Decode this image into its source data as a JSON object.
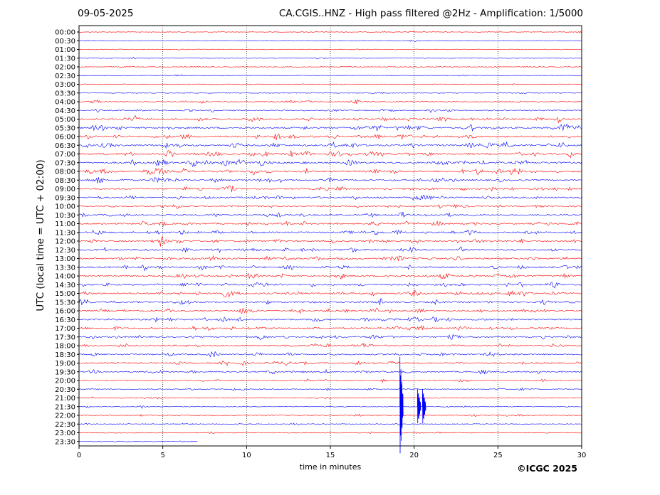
{
  "header": {
    "date": "09-05-2025",
    "title": "CA.CGIS..HNZ - High pass filtered @2Hz - Amplification: 1/5000"
  },
  "footer": {
    "copyright": "©ICGC 2025"
  },
  "chart_data": {
    "type": "line",
    "title": "CA.CGIS..HNZ - High pass filtered @2Hz - Amplification: 1/5000",
    "xlabel": "time in minutes",
    "ylabel": "UTC (local time = UTC + 02:00)",
    "xlim": [
      0,
      30
    ],
    "x_ticks": [
      "0",
      "5",
      "10",
      "15",
      "20",
      "25",
      "30"
    ],
    "row_labels": [
      "00:00",
      "00:30",
      "01:00",
      "01:30",
      "02:00",
      "02:30",
      "03:00",
      "03:30",
      "04:00",
      "04:30",
      "05:00",
      "05:30",
      "06:00",
      "06:30",
      "07:00",
      "07:30",
      "08:00",
      "08:30",
      "09:00",
      "09:30",
      "10:00",
      "10:30",
      "11:00",
      "11:30",
      "12:00",
      "12:30",
      "13:00",
      "13:30",
      "14:00",
      "14:30",
      "15:00",
      "15:30",
      "16:00",
      "16:30",
      "17:00",
      "17:30",
      "18:00",
      "18:30",
      "19:00",
      "19:30",
      "20:00",
      "20:30",
      "21:00",
      "21:30",
      "22:00",
      "22:30",
      "23:00",
      "23:30"
    ],
    "grid": "vertical dotted every 5 minutes",
    "trace_colors": [
      "#ff0000",
      "#0000ff"
    ],
    "activity_level": [
      0.05,
      0.05,
      0.05,
      0.05,
      0.05,
      0.05,
      0.05,
      0.08,
      0.25,
      0.25,
      0.5,
      0.6,
      0.6,
      0.6,
      0.6,
      0.6,
      0.6,
      0.5,
      0.45,
      0.45,
      0.4,
      0.4,
      0.5,
      0.5,
      0.5,
      0.5,
      0.5,
      0.5,
      0.55,
      0.55,
      0.55,
      0.5,
      0.5,
      0.45,
      0.45,
      0.4,
      0.4,
      0.4,
      0.4,
      0.35,
      0.2,
      0.2,
      0.12,
      0.12,
      0.12,
      0.12,
      0.12,
      0.1
    ],
    "last_row_end_minute": 7.1,
    "event_minutes": [
      19.15,
      20.2,
      20.5
    ]
  }
}
